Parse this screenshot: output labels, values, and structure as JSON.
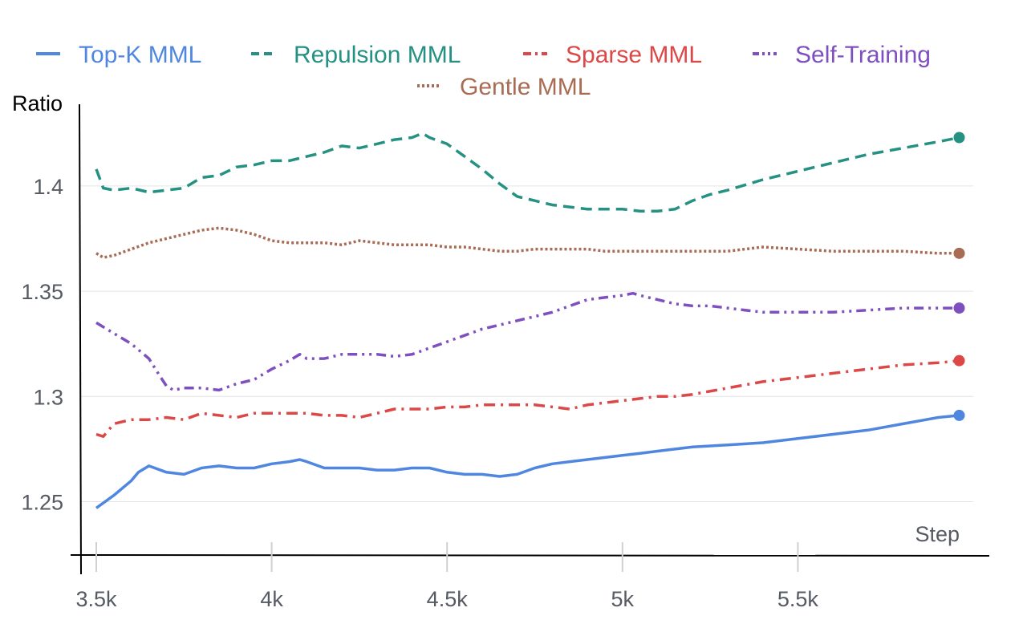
{
  "chart_data": {
    "type": "line",
    "title": "",
    "xlabel": "Step",
    "ylabel": "Ratio",
    "xlim": [
      3500,
      6000
    ],
    "ylim": [
      1.23,
      1.435
    ],
    "x_ticks": [
      3500,
      4000,
      4500,
      5000,
      5500
    ],
    "x_tick_labels": [
      "3.5k",
      "4k",
      "4.5k",
      "5k",
      "5.5k"
    ],
    "y_ticks": [
      1.25,
      1.3,
      1.35,
      1.4
    ],
    "y_tick_labels": [
      "1.25",
      "1.3",
      "1.35",
      "1.4"
    ],
    "grid": "horizontal",
    "legend_position": "top-center",
    "series": [
      {
        "name": "Top-K MML",
        "color": "#4f86e0",
        "dash": "solid",
        "x": [
          3500,
          3550,
          3600,
          3620,
          3650,
          3700,
          3750,
          3800,
          3850,
          3900,
          3950,
          4000,
          4050,
          4080,
          4100,
          4150,
          4200,
          4250,
          4300,
          4350,
          4400,
          4450,
          4500,
          4550,
          4600,
          4650,
          4700,
          4750,
          4800,
          4850,
          4900,
          4950,
          5000,
          5050,
          5100,
          5150,
          5200,
          5300,
          5400,
          5500,
          5600,
          5700,
          5800,
          5900,
          5960
        ],
        "values": [
          1.247,
          1.253,
          1.26,
          1.264,
          1.267,
          1.264,
          1.263,
          1.266,
          1.267,
          1.266,
          1.266,
          1.268,
          1.269,
          1.27,
          1.269,
          1.266,
          1.266,
          1.266,
          1.265,
          1.265,
          1.266,
          1.266,
          1.264,
          1.263,
          1.263,
          1.262,
          1.263,
          1.266,
          1.268,
          1.269,
          1.27,
          1.271,
          1.272,
          1.273,
          1.274,
          1.275,
          1.276,
          1.277,
          1.278,
          1.28,
          1.282,
          1.284,
          1.287,
          1.29,
          1.291
        ]
      },
      {
        "name": "Repulsion MML",
        "color": "#249182",
        "dash": "dashed",
        "x": [
          3500,
          3520,
          3550,
          3600,
          3650,
          3700,
          3750,
          3800,
          3850,
          3900,
          3950,
          4000,
          4050,
          4100,
          4150,
          4200,
          4250,
          4300,
          4350,
          4400,
          4430,
          4450,
          4500,
          4550,
          4600,
          4650,
          4700,
          4750,
          4800,
          4850,
          4900,
          4950,
          5000,
          5050,
          5100,
          5150,
          5200,
          5250,
          5300,
          5400,
          5500,
          5600,
          5700,
          5800,
          5900,
          5960
        ],
        "values": [
          1.408,
          1.399,
          1.398,
          1.399,
          1.397,
          1.398,
          1.399,
          1.404,
          1.405,
          1.409,
          1.41,
          1.412,
          1.412,
          1.414,
          1.416,
          1.419,
          1.418,
          1.42,
          1.422,
          1.423,
          1.425,
          1.423,
          1.42,
          1.414,
          1.408,
          1.401,
          1.395,
          1.393,
          1.391,
          1.39,
          1.389,
          1.389,
          1.389,
          1.388,
          1.388,
          1.389,
          1.393,
          1.396,
          1.398,
          1.403,
          1.407,
          1.411,
          1.415,
          1.418,
          1.421,
          1.423
        ]
      },
      {
        "name": "Sparse MML",
        "color": "#dc4747",
        "dash": "dashdot",
        "x": [
          3500,
          3520,
          3550,
          3600,
          3650,
          3700,
          3750,
          3800,
          3850,
          3900,
          3950,
          4000,
          4050,
          4100,
          4150,
          4200,
          4250,
          4300,
          4350,
          4400,
          4450,
          4500,
          4550,
          4600,
          4650,
          4700,
          4750,
          4800,
          4850,
          4900,
          4950,
          5000,
          5050,
          5100,
          5150,
          5200,
          5300,
          5400,
          5500,
          5600,
          5700,
          5800,
          5900,
          5960
        ],
        "values": [
          1.282,
          1.281,
          1.287,
          1.289,
          1.289,
          1.29,
          1.289,
          1.292,
          1.291,
          1.29,
          1.292,
          1.292,
          1.292,
          1.292,
          1.291,
          1.291,
          1.29,
          1.292,
          1.294,
          1.294,
          1.294,
          1.295,
          1.295,
          1.296,
          1.296,
          1.296,
          1.296,
          1.295,
          1.294,
          1.296,
          1.297,
          1.298,
          1.299,
          1.3,
          1.3,
          1.301,
          1.304,
          1.307,
          1.309,
          1.311,
          1.313,
          1.315,
          1.316,
          1.317
        ]
      },
      {
        "name": "Self-Training",
        "color": "#7e4fbf",
        "dash": "dashdotdot",
        "x": [
          3500,
          3550,
          3600,
          3650,
          3680,
          3700,
          3720,
          3750,
          3800,
          3850,
          3900,
          3950,
          4000,
          4050,
          4080,
          4100,
          4150,
          4200,
          4250,
          4300,
          4350,
          4400,
          4450,
          4500,
          4550,
          4600,
          4650,
          4700,
          4750,
          4800,
          4850,
          4900,
          4950,
          5000,
          5030,
          5050,
          5100,
          5150,
          5200,
          5250,
          5300,
          5350,
          5400,
          5500,
          5600,
          5700,
          5800,
          5900,
          5960
        ],
        "values": [
          1.335,
          1.33,
          1.325,
          1.318,
          1.31,
          1.305,
          1.303,
          1.304,
          1.304,
          1.303,
          1.306,
          1.308,
          1.313,
          1.317,
          1.32,
          1.318,
          1.318,
          1.32,
          1.32,
          1.32,
          1.319,
          1.32,
          1.323,
          1.326,
          1.329,
          1.332,
          1.334,
          1.336,
          1.338,
          1.34,
          1.343,
          1.346,
          1.347,
          1.348,
          1.349,
          1.348,
          1.346,
          1.344,
          1.343,
          1.343,
          1.342,
          1.341,
          1.34,
          1.34,
          1.34,
          1.341,
          1.342,
          1.342,
          1.342
        ]
      },
      {
        "name": "Gentle MML",
        "color": "#a86b54",
        "dash": "dotted",
        "x": [
          3500,
          3520,
          3550,
          3600,
          3650,
          3700,
          3750,
          3800,
          3850,
          3900,
          3950,
          4000,
          4050,
          4100,
          4150,
          4200,
          4250,
          4300,
          4350,
          4400,
          4450,
          4500,
          4550,
          4600,
          4650,
          4700,
          4750,
          4800,
          4850,
          4900,
          4950,
          5000,
          5100,
          5200,
          5300,
          5400,
          5500,
          5600,
          5700,
          5800,
          5900,
          5960
        ],
        "values": [
          1.368,
          1.366,
          1.367,
          1.37,
          1.373,
          1.375,
          1.377,
          1.379,
          1.38,
          1.379,
          1.377,
          1.374,
          1.373,
          1.373,
          1.373,
          1.372,
          1.374,
          1.373,
          1.372,
          1.372,
          1.372,
          1.371,
          1.371,
          1.37,
          1.369,
          1.369,
          1.37,
          1.37,
          1.37,
          1.37,
          1.369,
          1.369,
          1.369,
          1.369,
          1.369,
          1.371,
          1.37,
          1.369,
          1.369,
          1.369,
          1.368,
          1.368
        ]
      }
    ]
  }
}
